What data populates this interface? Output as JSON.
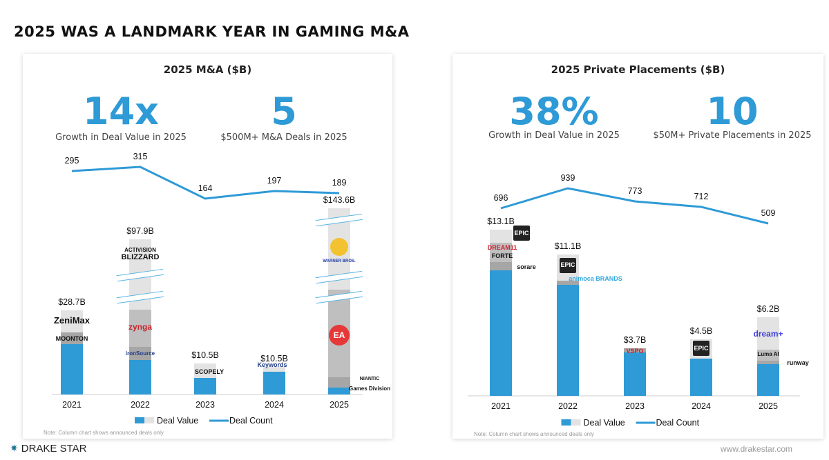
{
  "title": "2025 WAS A LANDMARK YEAR IN GAMING M&A",
  "left": {
    "title": "2025 M&A ($B)",
    "stats": [
      {
        "value": "14x",
        "label": "Growth in Deal Value in 2025"
      },
      {
        "value": "5",
        "label": "$500M+ M&A Deals in 2025"
      }
    ],
    "note": "Note: Column chart shows announced deals only",
    "logos": [
      "ZeniMax",
      "MOONTON",
      "ACTIVISION",
      "BLIZZARD",
      "zynga",
      "ironSource",
      "SCOPELY",
      "Keywords",
      "WARNER BROS.",
      "EA",
      "NIANTIC",
      "Games Division"
    ]
  },
  "right": {
    "title": "2025 Private Placements ($B)",
    "stats": [
      {
        "value": "38%",
        "label": "Growth in Deal Value in 2025"
      },
      {
        "value": "10",
        "label": "$50M+ Private Placements in 2025"
      }
    ],
    "note": "Note: Column chart shows announced deals only",
    "logos": [
      "EPIC",
      "DREAM11",
      "FORTE",
      "sorare",
      "EPIC",
      "animoca BRANDS",
      "VSPO",
      "EPIC",
      "dream+",
      "Luma AI",
      "runway"
    ]
  },
  "chart_data": [
    {
      "type": "bar",
      "categories": [
        "2021",
        "2022",
        "2023",
        "2024",
        "2025"
      ],
      "series": [
        {
          "name": "Deal Value",
          "values": [
            28.7,
            97.9,
            10.5,
            10.5,
            143.6
          ],
          "labels": [
            "$28.7B",
            "$97.9B",
            "$10.5B",
            "$10.5B",
            "$143.6B"
          ]
        },
        {
          "name": "Deal Count",
          "type": "line",
          "values": [
            295,
            315,
            164,
            197,
            189
          ]
        }
      ],
      "legend": "bottom",
      "axis_break": true,
      "colors": {
        "value": "#2e9ad6",
        "segments": [
          "#a6a6a6",
          "#bfbfbf",
          "#e3e3e3"
        ],
        "line": "#2e9ad6"
      }
    },
    {
      "type": "bar",
      "categories": [
        "2021",
        "2022",
        "2023",
        "2024",
        "2025"
      ],
      "series": [
        {
          "name": "Deal Value",
          "values": [
            13.1,
            11.1,
            3.7,
            4.5,
            6.2
          ],
          "labels": [
            "$13.1B",
            "$11.1B",
            "$3.7B",
            "$4.5B",
            "$6.2B"
          ]
        },
        {
          "name": "Deal Count",
          "type": "line",
          "values": [
            696,
            939,
            773,
            712,
            509
          ]
        }
      ],
      "legend": "bottom",
      "colors": {
        "value": "#2e9ad6",
        "segments": [
          "#a6a6a6",
          "#bfbfbf",
          "#e3e3e3"
        ],
        "line": "#2e9ad6"
      }
    }
  ],
  "footer": {
    "brand": "DRAKE STAR",
    "site": "www.drakestar.com"
  }
}
